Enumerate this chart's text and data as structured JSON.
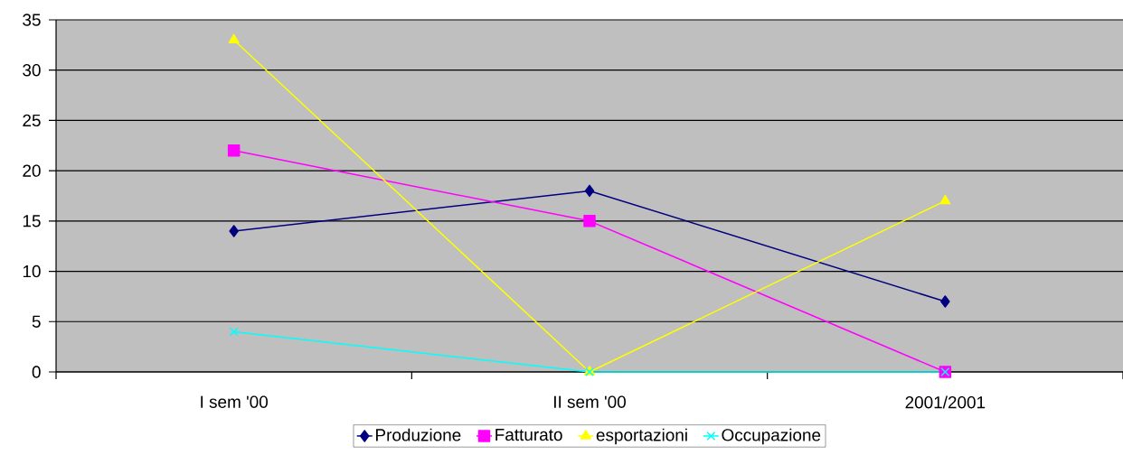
{
  "chart_data": {
    "type": "line",
    "categories": [
      "I sem '00",
      "II sem '00",
      "2001/2001"
    ],
    "series": [
      {
        "name": "Produzione",
        "color": "#000080",
        "marker": "diamond",
        "values": [
          14,
          18,
          7
        ]
      },
      {
        "name": "Fatturato",
        "color": "#ff00ff",
        "marker": "square",
        "values": [
          22,
          15,
          0
        ]
      },
      {
        "name": "esportazioni",
        "color": "#ffff00",
        "marker": "triangle",
        "values": [
          33,
          0,
          17
        ]
      },
      {
        "name": "Occupazione",
        "color": "#00ffff",
        "marker": "cross",
        "values": [
          4,
          0,
          0
        ]
      }
    ],
    "ylim": [
      0,
      35
    ],
    "yticks": [
      0,
      5,
      10,
      15,
      20,
      25,
      30,
      35
    ],
    "grid": "y",
    "legend": "bottom",
    "line_style": "solid"
  }
}
